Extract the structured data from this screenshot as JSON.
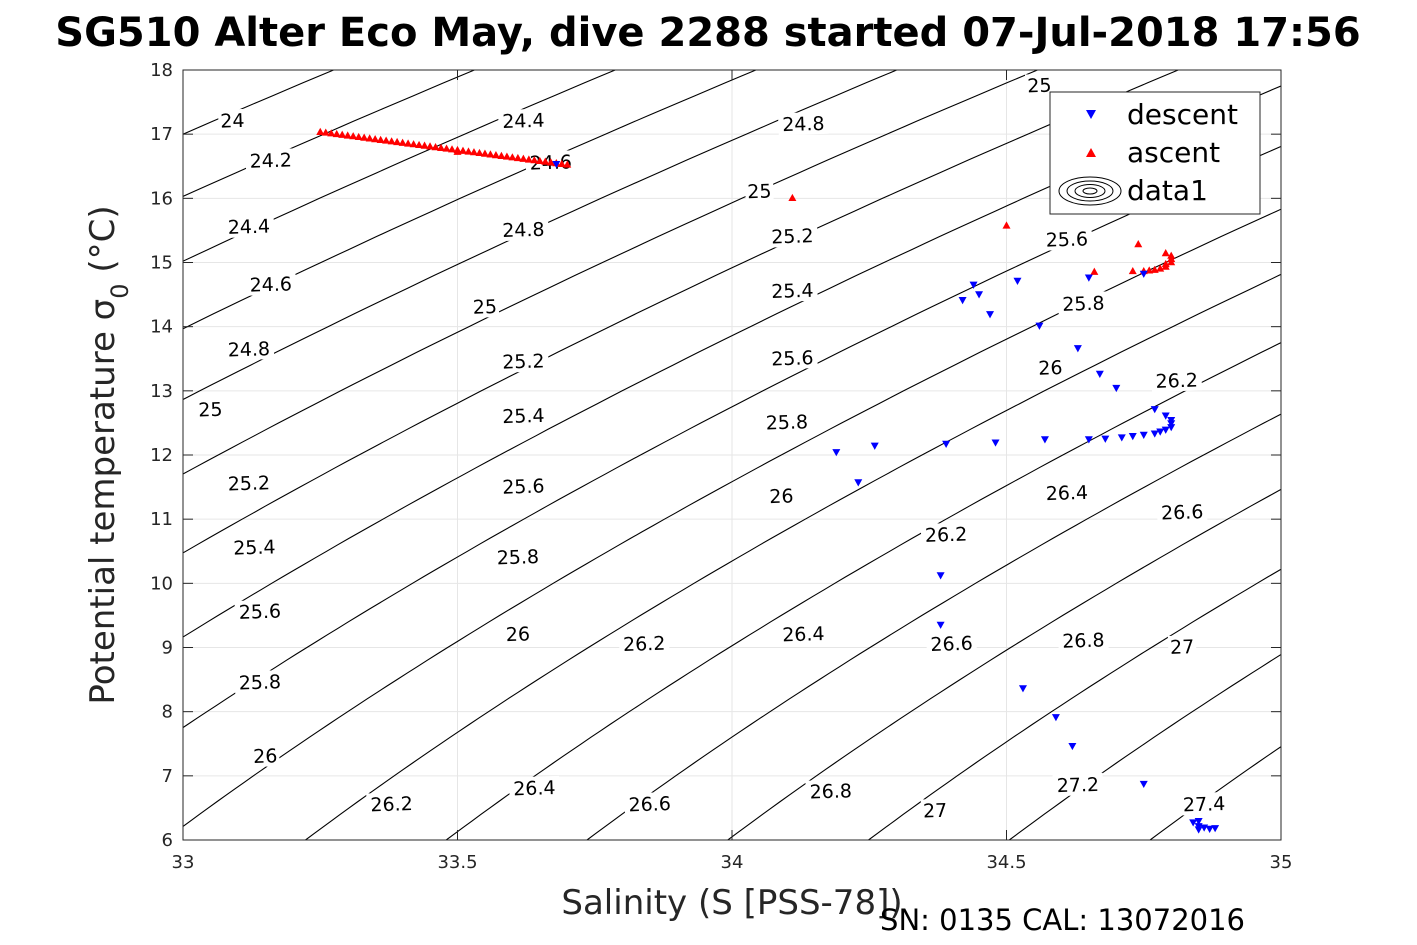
{
  "figure": {
    "title": "SG510 Alter Eco May, dive 2288 started 07-Jul-2018 17:56",
    "footer": "SN: 0135  CAL: 13072016"
  },
  "colors": {
    "descent": "#0000ff",
    "ascent": "#ff0000",
    "contour": "#000000",
    "grid": "#e6e6e6",
    "axis": "#262626"
  },
  "chart_data": {
    "type": "scatter",
    "title": "SG510 Alter Eco May, dive 2288 started 07-Jul-2018 17:56",
    "xlabel": "Salinity (S [PSS-78])",
    "ylabel": "Potential temperature σ0 (°C)",
    "xlim": [
      33,
      35
    ],
    "ylim": [
      6,
      18
    ],
    "xticks": [
      "33",
      "33.5",
      "34",
      "34.5",
      "35"
    ],
    "yticks": [
      "6",
      "7",
      "8",
      "9",
      "10",
      "11",
      "12",
      "13",
      "14",
      "15",
      "16",
      "17",
      "18"
    ],
    "grid": true,
    "legend_position": "top-right",
    "legend": [
      "descent",
      "ascent",
      "data1"
    ],
    "contours": {
      "name": "data1",
      "levels": [
        24,
        24.2,
        24.4,
        24.6,
        24.8,
        25,
        25.2,
        25.4,
        25.6,
        25.8,
        26,
        26.2,
        26.4,
        26.6,
        26.8,
        27,
        27.2,
        27.4
      ],
      "labels": [
        {
          "text": "24",
          "s": 33.09,
          "t": 17.2
        },
        {
          "text": "24.2",
          "s": 33.16,
          "t": 16.58
        },
        {
          "text": "24.4",
          "s": 33.12,
          "t": 15.55
        },
        {
          "text": "24.6",
          "s": 33.16,
          "t": 14.65
        },
        {
          "text": "24.8",
          "s": 33.12,
          "t": 13.64
        },
        {
          "text": "25",
          "s": 33.05,
          "t": 12.7
        },
        {
          "text": "25.2",
          "s": 33.12,
          "t": 11.55
        },
        {
          "text": "25.4",
          "s": 33.13,
          "t": 10.55
        },
        {
          "text": "25.6",
          "s": 33.14,
          "t": 9.55
        },
        {
          "text": "25.8",
          "s": 33.14,
          "t": 8.45
        },
        {
          "text": "26",
          "s": 33.15,
          "t": 7.3
        },
        {
          "text": "24.4",
          "s": 33.62,
          "t": 17.2
        },
        {
          "text": "24.6",
          "s": 33.67,
          "t": 16.55
        },
        {
          "text": "24.8",
          "s": 33.62,
          "t": 15.5
        },
        {
          "text": "25",
          "s": 33.55,
          "t": 14.3
        },
        {
          "text": "25.2",
          "s": 33.62,
          "t": 13.45
        },
        {
          "text": "25.4",
          "s": 33.62,
          "t": 12.6
        },
        {
          "text": "25.6",
          "s": 33.62,
          "t": 11.5
        },
        {
          "text": "25.8",
          "s": 33.61,
          "t": 10.4
        },
        {
          "text": "26",
          "s": 33.61,
          "t": 9.2
        },
        {
          "text": "26.2",
          "s": 33.38,
          "t": 6.55
        },
        {
          "text": "26.4",
          "s": 33.64,
          "t": 6.8
        },
        {
          "text": "24.8",
          "s": 34.13,
          "t": 17.15
        },
        {
          "text": "25",
          "s": 34.05,
          "t": 16.1
        },
        {
          "text": "25.2",
          "s": 34.11,
          "t": 15.4
        },
        {
          "text": "25.4",
          "s": 34.11,
          "t": 14.55
        },
        {
          "text": "25.6",
          "s": 34.11,
          "t": 13.5
        },
        {
          "text": "25.8",
          "s": 34.1,
          "t": 12.5
        },
        {
          "text": "26",
          "s": 34.09,
          "t": 11.35
        },
        {
          "text": "26.2",
          "s": 33.84,
          "t": 9.05
        },
        {
          "text": "26.4",
          "s": 34.13,
          "t": 9.2
        },
        {
          "text": "26.6",
          "s": 33.85,
          "t": 6.55
        },
        {
          "text": "26.8",
          "s": 34.18,
          "t": 6.75
        },
        {
          "text": "25",
          "s": 34.56,
          "t": 17.75
        },
        {
          "text": "25.6",
          "s": 34.61,
          "t": 15.35
        },
        {
          "text": "25.8",
          "s": 34.64,
          "t": 14.35
        },
        {
          "text": "26",
          "s": 34.58,
          "t": 13.35
        },
        {
          "text": "26.2",
          "s": 34.39,
          "t": 10.75
        },
        {
          "text": "26.6",
          "s": 34.4,
          "t": 9.05
        },
        {
          "text": "27",
          "s": 34.37,
          "t": 6.45
        },
        {
          "text": "26.2",
          "s": 34.81,
          "t": 13.15
        },
        {
          "text": "26.4",
          "s": 34.61,
          "t": 11.4
        },
        {
          "text": "26.6",
          "s": 34.82,
          "t": 11.1
        },
        {
          "text": "26.8",
          "s": 34.64,
          "t": 9.1
        },
        {
          "text": "27",
          "s": 34.82,
          "t": 9.0
        },
        {
          "text": "27.2",
          "s": 34.63,
          "t": 6.85
        },
        {
          "text": "27.4",
          "s": 34.86,
          "t": 6.55
        }
      ]
    },
    "series": [
      {
        "name": "descent",
        "marker": "triangle-down",
        "points": [
          [
            33.68,
            16.54
          ],
          [
            34.19,
            12.05
          ],
          [
            34.23,
            11.58
          ],
          [
            34.26,
            12.15
          ],
          [
            34.39,
            12.18
          ],
          [
            34.38,
            10.13
          ],
          [
            34.38,
            9.36
          ],
          [
            34.42,
            14.42
          ],
          [
            34.44,
            14.66
          ],
          [
            34.45,
            14.51
          ],
          [
            34.47,
            14.2
          ],
          [
            34.48,
            12.2
          ],
          [
            34.52,
            14.72
          ],
          [
            34.53,
            8.37
          ],
          [
            34.56,
            14.02
          ],
          [
            34.57,
            12.25
          ],
          [
            34.59,
            7.92
          ],
          [
            34.62,
            7.47
          ],
          [
            34.63,
            13.67
          ],
          [
            34.65,
            14.77
          ],
          [
            34.65,
            12.25
          ],
          [
            34.67,
            13.27
          ],
          [
            34.68,
            12.26
          ],
          [
            34.7,
            13.05
          ],
          [
            34.71,
            12.28
          ],
          [
            34.73,
            12.3
          ],
          [
            34.75,
            12.32
          ],
          [
            34.77,
            12.34
          ],
          [
            34.78,
            12.37
          ],
          [
            34.79,
            12.4
          ],
          [
            34.8,
            12.44
          ],
          [
            34.8,
            12.5
          ],
          [
            34.8,
            12.55
          ],
          [
            34.79,
            12.62
          ],
          [
            34.77,
            12.72
          ],
          [
            34.75,
            14.83
          ],
          [
            34.75,
            6.88
          ],
          [
            34.84,
            6.28
          ],
          [
            34.85,
            6.22
          ],
          [
            34.85,
            6.17
          ],
          [
            34.86,
            6.2
          ],
          [
            34.87,
            6.18
          ],
          [
            34.88,
            6.19
          ],
          [
            34.85,
            6.3
          ]
        ]
      },
      {
        "name": "ascent",
        "marker": "triangle-up",
        "line": {
          "from": [
            33.25,
            17.03
          ],
          "to": [
            33.7,
            16.52
          ],
          "count": 46
        },
        "points": [
          [
            33.5,
            16.72
          ],
          [
            34.11,
            16.0
          ],
          [
            34.5,
            15.57
          ],
          [
            34.66,
            14.85
          ],
          [
            34.73,
            14.86
          ],
          [
            34.74,
            15.28
          ],
          [
            34.75,
            14.86
          ],
          [
            34.76,
            14.87
          ],
          [
            34.77,
            14.88
          ],
          [
            34.78,
            14.9
          ],
          [
            34.79,
            14.93
          ],
          [
            34.79,
            14.97
          ],
          [
            34.8,
            15.0
          ],
          [
            34.8,
            15.05
          ],
          [
            34.8,
            15.1
          ],
          [
            34.79,
            15.14
          ]
        ]
      }
    ]
  }
}
